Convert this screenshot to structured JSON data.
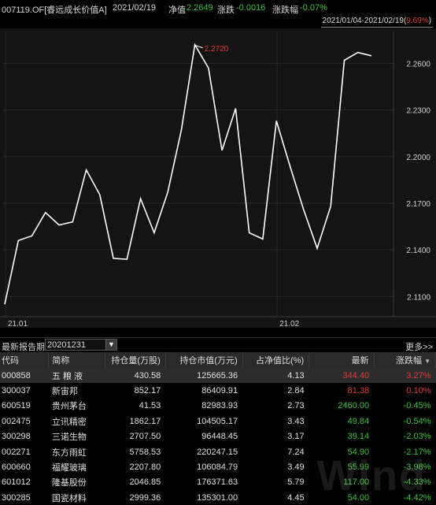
{
  "header": {
    "fund": "007119.OF[睿远成长价值A]",
    "date": "2021/02/19",
    "nav_label": "净值",
    "nav": "2.2649",
    "chg_label": "涨跌",
    "chg": "-0.0016",
    "pct_label": "涨跌幅",
    "pct": "-0.07%"
  },
  "range": {
    "period": "2021/01/04-2021/02/19",
    "open": "(",
    "pct": "9.69%",
    "close": ")"
  },
  "chart_data": {
    "type": "line",
    "y_ticks": [
      "2.2600",
      "2.2300",
      "2.2000",
      "2.1700",
      "2.1400",
      "2.1100"
    ],
    "x_ticks": [
      "21.01",
      "21.02"
    ],
    "ylim": [
      2.097,
      2.2805
    ],
    "max_label": "2.2720",
    "max_index": 15,
    "colors": {
      "line": "#ffffff",
      "max_label": "#e23a3a",
      "bg": "#141414",
      "grid": "#2a2a2a"
    },
    "values": [
      2.105,
      2.146,
      2.149,
      2.164,
      2.156,
      2.158,
      2.1915,
      2.1755,
      2.1345,
      2.134,
      2.173,
      2.151,
      2.177,
      2.217,
      2.272,
      2.257,
      2.204,
      2.231,
      2.151,
      2.147,
      2.223,
      2.194,
      2.166,
      2.141,
      2.168,
      2.262,
      2.267,
      2.2649
    ]
  },
  "report": {
    "label": "最新报告期",
    "value": "20201231",
    "more": "更多>>"
  },
  "table": {
    "headers": [
      "代码",
      "简称",
      "持仓量(万股)",
      "持仓市值(万元)",
      "占净值比(%)",
      "最新",
      "涨跌幅"
    ],
    "sort_glyph": "▼",
    "rows": [
      {
        "code": "000858",
        "name": "五 粮 液",
        "qty": "430.58",
        "mv": "125665.36",
        "ratio": "4.13",
        "last": "344.40",
        "chg": "3.27%",
        "dir": "up"
      },
      {
        "code": "300037",
        "name": "新宙邦",
        "qty": "852.17",
        "mv": "86409.91",
        "ratio": "2.84",
        "last": "81.38",
        "chg": "0.10%",
        "dir": "up"
      },
      {
        "code": "600519",
        "name": "贵州茅台",
        "qty": "41.53",
        "mv": "82983.93",
        "ratio": "2.73",
        "last": "2460.00",
        "chg": "-0.45%",
        "dir": "down"
      },
      {
        "code": "002475",
        "name": "立讯精密",
        "qty": "1862.17",
        "mv": "104505.17",
        "ratio": "3.43",
        "last": "49.84",
        "chg": "-0.54%",
        "dir": "down"
      },
      {
        "code": "300298",
        "name": "三诺生物",
        "qty": "2707.50",
        "mv": "96448.45",
        "ratio": "3.17",
        "last": "39.14",
        "chg": "-2.03%",
        "dir": "down"
      },
      {
        "code": "002271",
        "name": "东方雨虹",
        "qty": "5758.53",
        "mv": "220247.15",
        "ratio": "7.24",
        "last": "54.90",
        "chg": "-2.17%",
        "dir": "down"
      },
      {
        "code": "600660",
        "name": "福耀玻璃",
        "qty": "2207.80",
        "mv": "106084.79",
        "ratio": "3.49",
        "last": "55.99",
        "chg": "-3.98%",
        "dir": "down"
      },
      {
        "code": "601012",
        "name": "隆基股份",
        "qty": "2046.85",
        "mv": "176371.63",
        "ratio": "5.79",
        "last": "117.00",
        "chg": "-4.33%",
        "dir": "down"
      },
      {
        "code": "300285",
        "name": "国瓷材料",
        "qty": "2999.36",
        "mv": "135301.00",
        "ratio": "4.45",
        "last": "54.00",
        "chg": "-4.42%",
        "dir": "down"
      }
    ]
  },
  "watermark": "Wind"
}
